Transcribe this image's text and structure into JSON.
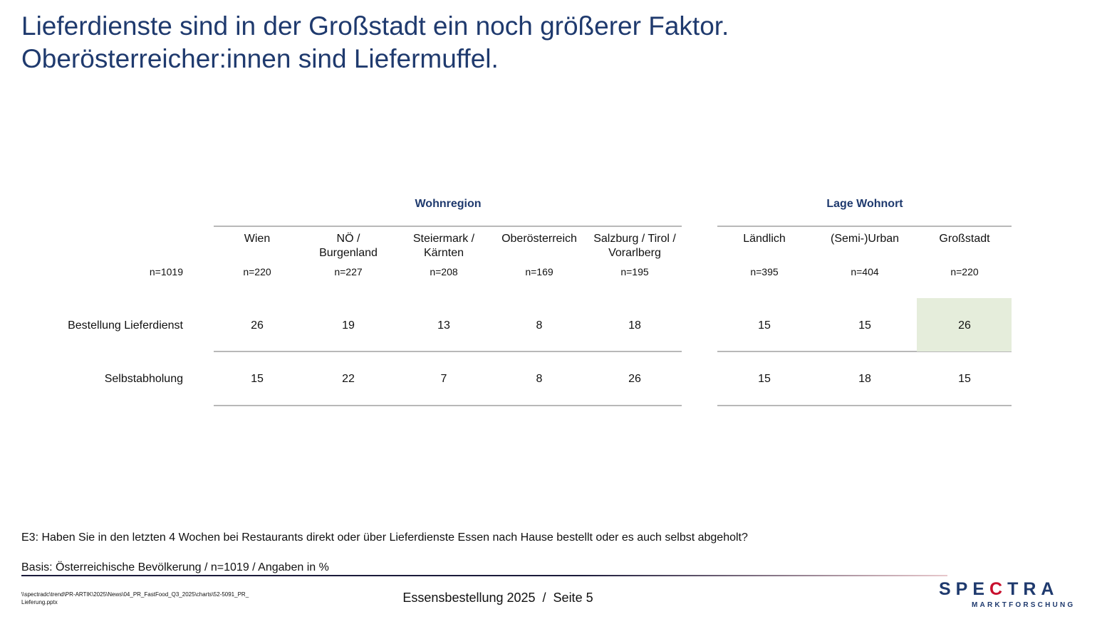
{
  "title": [
    "Lieferdienste sind in der Großstadt ein noch größerer Faktor.",
    "Oberösterreicher:innen sind Liefermuffel."
  ],
  "groups": {
    "region": "Wohnregion",
    "lage": "Lage Wohnort"
  },
  "columns": [
    {
      "label": "Wien",
      "n": "n=220"
    },
    {
      "label": "NÖ /\nBurgenland",
      "n": "n=227"
    },
    {
      "label": "Steiermark /\nKärnten",
      "n": "n=208"
    },
    {
      "label": "Oberösterreich",
      "n": "n=169"
    },
    {
      "label": "Salzburg / Tirol /\nVorarlberg",
      "n": "n=195"
    },
    {
      "label": "Ländlich",
      "n": "n=395"
    },
    {
      "label": "(Semi-)Urban",
      "n": "n=404"
    },
    {
      "label": "Großstadt",
      "n": "n=220"
    }
  ],
  "total_n": "n=1019",
  "rows": [
    {
      "label": "Bestellung Lieferdienst",
      "values": [
        "26",
        "19",
        "13",
        "8",
        "18",
        "15",
        "15",
        "26"
      ]
    },
    {
      "label": "Selbstabholung",
      "values": [
        "15",
        "22",
        "7",
        "8",
        "26",
        "15",
        "18",
        "15"
      ]
    }
  ],
  "highlight": {
    "row": 0,
    "column": 7,
    "color": "#e5eddb"
  },
  "question": "E3: Haben Sie in den letzten 4 Wochen bei Restaurants direkt oder über Lieferdienste Essen nach Hause bestellt oder es auch selbst abgeholt?",
  "basis": "Basis: Österreichische Bevölkerung / n=1019 / Angaben in %",
  "file_path": "\\\\spectradc\\trend\\PR-ARTIK\\2025\\News\\04_PR_FastFood_Q3_2025\\charts\\52-5091_PR_Lieferung.pptx",
  "footer": "Essensbestellung 2025  /  Seite 5",
  "logo": {
    "name": "SPECTRA",
    "sub": "MARKTFORSCHUNG",
    "color": "#1f3a6e",
    "accent": "#c8102e"
  }
}
